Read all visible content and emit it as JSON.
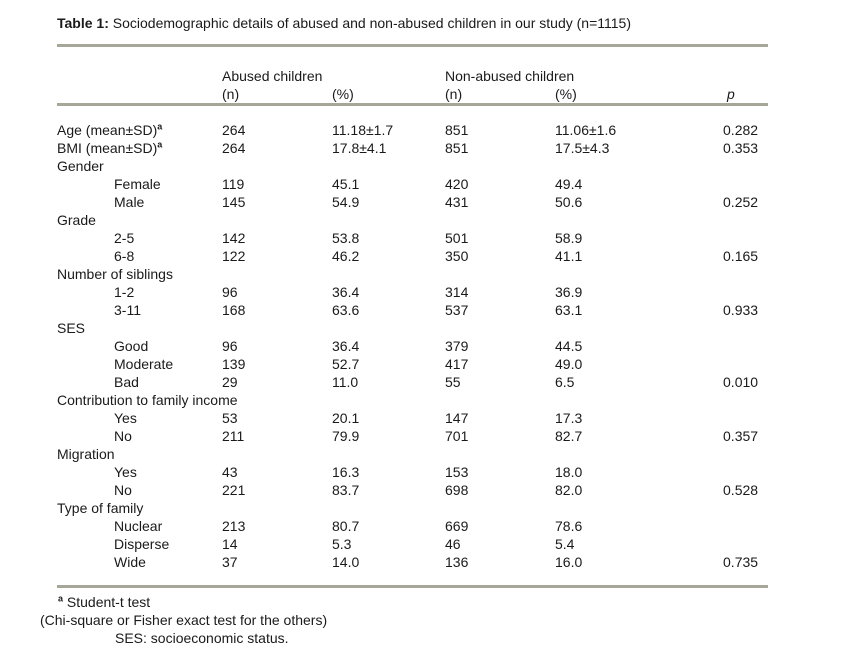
{
  "title": {
    "label": "Table 1:",
    "text": " Sociodemographic details of abused and non-abused children in our study (n=1115)"
  },
  "header": {
    "abused": "Abused children",
    "non_abused": "Non-abused children",
    "n_label": "(n)",
    "pct_label": "(%)",
    "n_label2": "(n)",
    "pct_label2": "(%)",
    "p_label": "p"
  },
  "rows": [
    {
      "label": "Age (mean±SD)",
      "sup": "a",
      "indent": false,
      "n1": "264",
      "pct1": "11.18±1.7",
      "n2": "851",
      "pct2": "11.06±1.6",
      "p": "0.282"
    },
    {
      "label": "BMI (mean±SD)",
      "sup": "a",
      "indent": false,
      "n1": "264",
      "pct1": "17.8±4.1",
      "n2": "851",
      "pct2": "17.5±4.3",
      "p": "0.353"
    },
    {
      "label": "Gender",
      "indent": false
    },
    {
      "label": "Female",
      "indent": true,
      "n1": "119",
      "pct1": "45.1",
      "n2": "420",
      "pct2": "49.4"
    },
    {
      "label": "Male",
      "indent": true,
      "n1": "145",
      "pct1": "54.9",
      "n2": "431",
      "pct2": "50.6",
      "p": "0.252"
    },
    {
      "label": "Grade",
      "indent": false
    },
    {
      "label": "2-5",
      "indent": true,
      "n1": "142",
      "pct1": "53.8",
      "n2": "501",
      "pct2": "58.9"
    },
    {
      "label": "6-8",
      "indent": true,
      "n1": "122",
      "pct1": "46.2",
      "n2": "350",
      "pct2": "41.1",
      "p": "0.165"
    },
    {
      "label": "Number of siblings",
      "indent": false
    },
    {
      "label": "1-2",
      "indent": true,
      "n1": "96",
      "pct1": "36.4",
      "n2": "314",
      "pct2": "36.9"
    },
    {
      "label": "3-11",
      "indent": true,
      "n1": "168",
      "pct1": "63.6",
      "n2": "537",
      "pct2": "63.1",
      "p": "0.933"
    },
    {
      "label": "SES",
      "indent": false
    },
    {
      "label": "Good",
      "indent": true,
      "n1": "96",
      "pct1": "36.4",
      "n2": "379",
      "pct2": "44.5"
    },
    {
      "label": "Moderate",
      "indent": true,
      "n1": "139",
      "pct1": "52.7",
      "n2": "417",
      "pct2": "49.0"
    },
    {
      "label": "Bad",
      "indent": true,
      "n1": "29",
      "pct1": "11.0",
      "n2": "55",
      "pct2": "6.5",
      "p": "0.010"
    },
    {
      "label": "Contribution to family income",
      "indent": false
    },
    {
      "label": "Yes",
      "indent": true,
      "n1": "53",
      "pct1": "20.1",
      "n2": "147",
      "pct2": "17.3"
    },
    {
      "label": "No",
      "indent": true,
      "n1": "211",
      "pct1": "79.9",
      "n2": "701",
      "pct2": "82.7",
      "p": "0.357"
    },
    {
      "label": "Migration",
      "indent": false
    },
    {
      "label": "Yes",
      "indent": true,
      "n1": "43",
      "pct1": "16.3",
      "n2": "153",
      "pct2": "18.0"
    },
    {
      "label": "No",
      "indent": true,
      "n1": "221",
      "pct1": "83.7",
      "n2": "698",
      "pct2": "82.0",
      "p": "0.528"
    },
    {
      "label": "Type of family",
      "indent": false
    },
    {
      "label": "Nuclear",
      "indent": true,
      "n1": "213",
      "pct1": "80.7",
      "n2": "669",
      "pct2": "78.6"
    },
    {
      "label": "Disperse",
      "indent": true,
      "n1": "14",
      "pct1": "5.3",
      "n2": "46",
      "pct2": "5.4"
    },
    {
      "label": "Wide",
      "indent": true,
      "n1": "37",
      "pct1": "14.0",
      "n2": "136",
      "pct2": "16.0",
      "p": "0.735"
    }
  ],
  "footnotes": {
    "marker": "a",
    "line1": " Student-t test",
    "line2": "(Chi-square or Fisher exact test for the others)",
    "line3": "SES: socioeconomic status."
  },
  "colors": {
    "rule": "#a6a699",
    "text": "#1a1a1a",
    "background": "#ffffff"
  }
}
